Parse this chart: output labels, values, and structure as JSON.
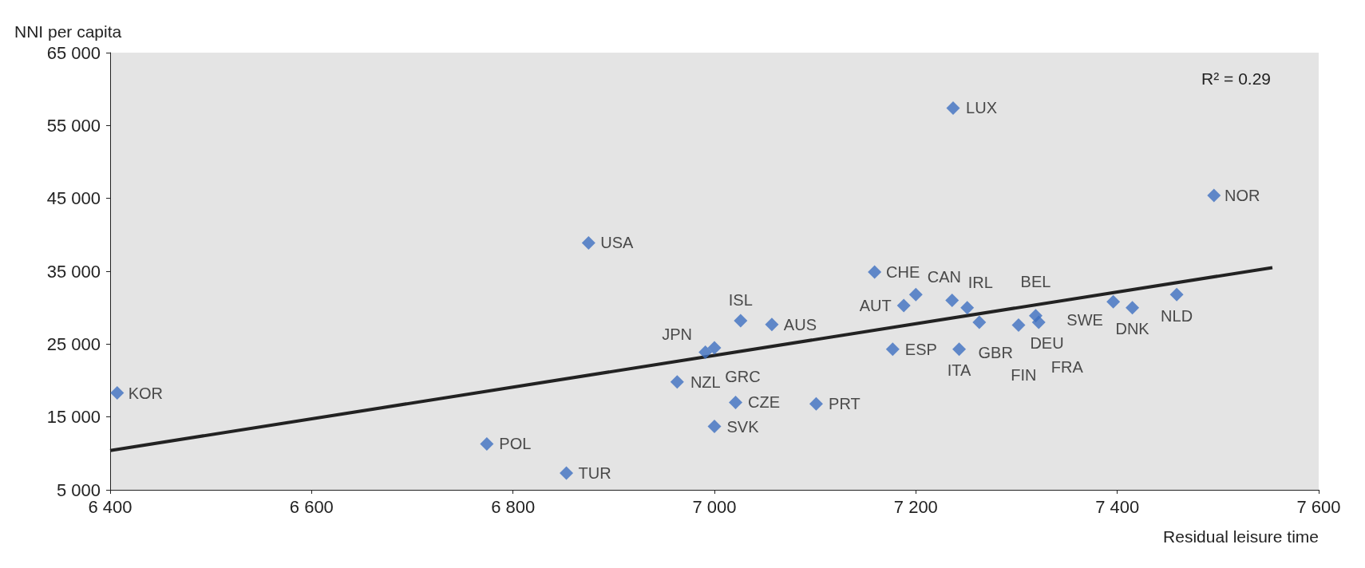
{
  "chart_data": {
    "type": "scatter",
    "xlabel": "Residual leisure time",
    "ylabel": "NNI per capita",
    "marker": "diamond",
    "grid": false,
    "annotations": [
      "R² = 0.29"
    ],
    "xlim": [
      6400,
      7600
    ],
    "xticks": [
      {
        "value": 6400,
        "label": "6 400"
      },
      {
        "value": 6600,
        "label": "6 600"
      },
      {
        "value": 6800,
        "label": "6 800"
      },
      {
        "value": 7000,
        "label": "7 000"
      },
      {
        "value": 7200,
        "label": "7 200"
      },
      {
        "value": 7400,
        "label": "7 400"
      },
      {
        "value": 7600,
        "label": "7 600"
      }
    ],
    "ylim": [
      5000,
      65000
    ],
    "yticks": [
      {
        "value": 5000,
        "label": "5 000"
      },
      {
        "value": 15000,
        "label": "15 000"
      },
      {
        "value": 25000,
        "label": "25 000"
      },
      {
        "value": 35000,
        "label": "35 000"
      },
      {
        "value": 45000,
        "label": "45 000"
      },
      {
        "value": 55000,
        "label": "55 000"
      },
      {
        "value": 65000,
        "label": "65 000"
      }
    ],
    "series": [
      {
        "color": "#3d6fc0",
        "x": [
          6407,
          6774,
          6853,
          6875,
          6963,
          6991,
          7000,
          7026,
          7000,
          7021,
          7057,
          7101,
          7159,
          7188,
          7200,
          7177,
          7237,
          7236,
          7251,
          7263,
          7243,
          7302,
          7319,
          7322,
          7396,
          7415,
          7459,
          7496
        ],
        "values": [
          18300,
          11300,
          7300,
          38900,
          19800,
          23900,
          24500,
          28200,
          13700,
          17000,
          27700,
          16800,
          34900,
          30300,
          31800,
          24300,
          57400,
          31000,
          30000,
          28000,
          24300,
          27600,
          28900,
          28000,
          30800,
          30000,
          31800,
          45400
        ],
        "value_labels": [
          "KOR",
          "POL",
          "TUR",
          "USA",
          "NZL",
          "JPN",
          "GRC",
          "ISL",
          "SVK",
          "CZE",
          "AUS",
          "PRT",
          "CHE",
          "AUT",
          "CAN",
          "ESP",
          "LUX",
          "IRL",
          "GBR",
          "FIN",
          "ITA",
          "DEU",
          "BEL",
          "FRA",
          "SWE",
          "DNK",
          "NLD",
          "NOR"
        ]
      },
      {
        "type": "line",
        "color": "#222222",
        "marker": "none",
        "x": [
          6400,
          7554
        ],
        "values": [
          10400,
          35500
        ]
      }
    ]
  }
}
